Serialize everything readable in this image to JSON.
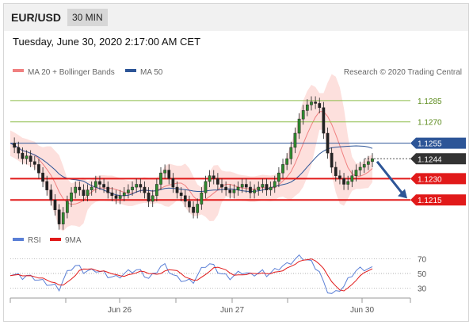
{
  "header": {
    "symbol": "EUR/USD",
    "timeframe": "30 MIN"
  },
  "timestamp": "Tuesday, June 30, 2020 2:17:00 AM CET",
  "legend": {
    "bollinger_label": "MA 20 + Bollinger Bands",
    "ma50_label": "MA 50",
    "credit": "Research © 2020 Trading Central"
  },
  "rsi_legend": {
    "rsi_label": "RSI",
    "ma_label": "9MA"
  },
  "colors": {
    "bollinger": "#f08080",
    "ma50": "#2d5597",
    "resistance": "#8dbd4a",
    "support": "#e11a1a",
    "current": "#333333",
    "arrow": "#2d5597"
  },
  "chart_data": [
    {
      "type": "line",
      "title": "",
      "ylim": [
        1.1195,
        1.13
      ],
      "levels": [
        {
          "label": "1.1285",
          "value": 1.1285,
          "kind": "resistance"
        },
        {
          "label": "1.1270",
          "value": 1.127,
          "kind": "resistance"
        },
        {
          "label": "1.1255",
          "value": 1.1255,
          "kind": "pivot"
        },
        {
          "label": "1.1244",
          "value": 1.1244,
          "kind": "current"
        },
        {
          "label": "1.1230",
          "value": 1.123,
          "kind": "support"
        },
        {
          "label": "1.1215",
          "value": 1.1215,
          "kind": "support"
        }
      ],
      "x_ticks": [
        "Jun 26",
        "Jun 27",
        "Jun 30"
      ],
      "series": [
        {
          "name": "MA 20 + Bollinger Bands"
        },
        {
          "name": "MA 50"
        }
      ],
      "price": [
        1.1255,
        1.1252,
        1.1248,
        1.1244,
        1.1246,
        1.1242,
        1.124,
        1.1234,
        1.1228,
        1.1222,
        1.1215,
        1.1208,
        1.1198,
        1.1206,
        1.1214,
        1.122,
        1.1224,
        1.1222,
        1.1218,
        1.1222,
        1.1224,
        1.1228,
        1.1226,
        1.1224,
        1.122,
        1.1218,
        1.1216,
        1.1218,
        1.122,
        1.1222,
        1.1224,
        1.1226,
        1.1224,
        1.122,
        1.1214,
        1.1218,
        1.1226,
        1.1234,
        1.1236,
        1.123,
        1.1224,
        1.122,
        1.1218,
        1.1214,
        1.121,
        1.1206,
        1.1212,
        1.122,
        1.1228,
        1.1232,
        1.123,
        1.1226,
        1.1224,
        1.1222,
        1.122,
        1.1222,
        1.1224,
        1.1226,
        1.1224,
        1.122,
        1.1222,
        1.1224,
        1.1226,
        1.1222,
        1.1224,
        1.1228,
        1.1234,
        1.124,
        1.1244,
        1.1252,
        1.1262,
        1.1272,
        1.1278,
        1.1282,
        1.1284,
        1.1283,
        1.128,
        1.1262,
        1.1248,
        1.1238,
        1.1232,
        1.123,
        1.1226,
        1.1228,
        1.1232,
        1.1236,
        1.1238,
        1.124,
        1.1242,
        1.1244
      ],
      "rsi": {
        "ticks": [
          70,
          50,
          30
        ]
      }
    }
  ]
}
